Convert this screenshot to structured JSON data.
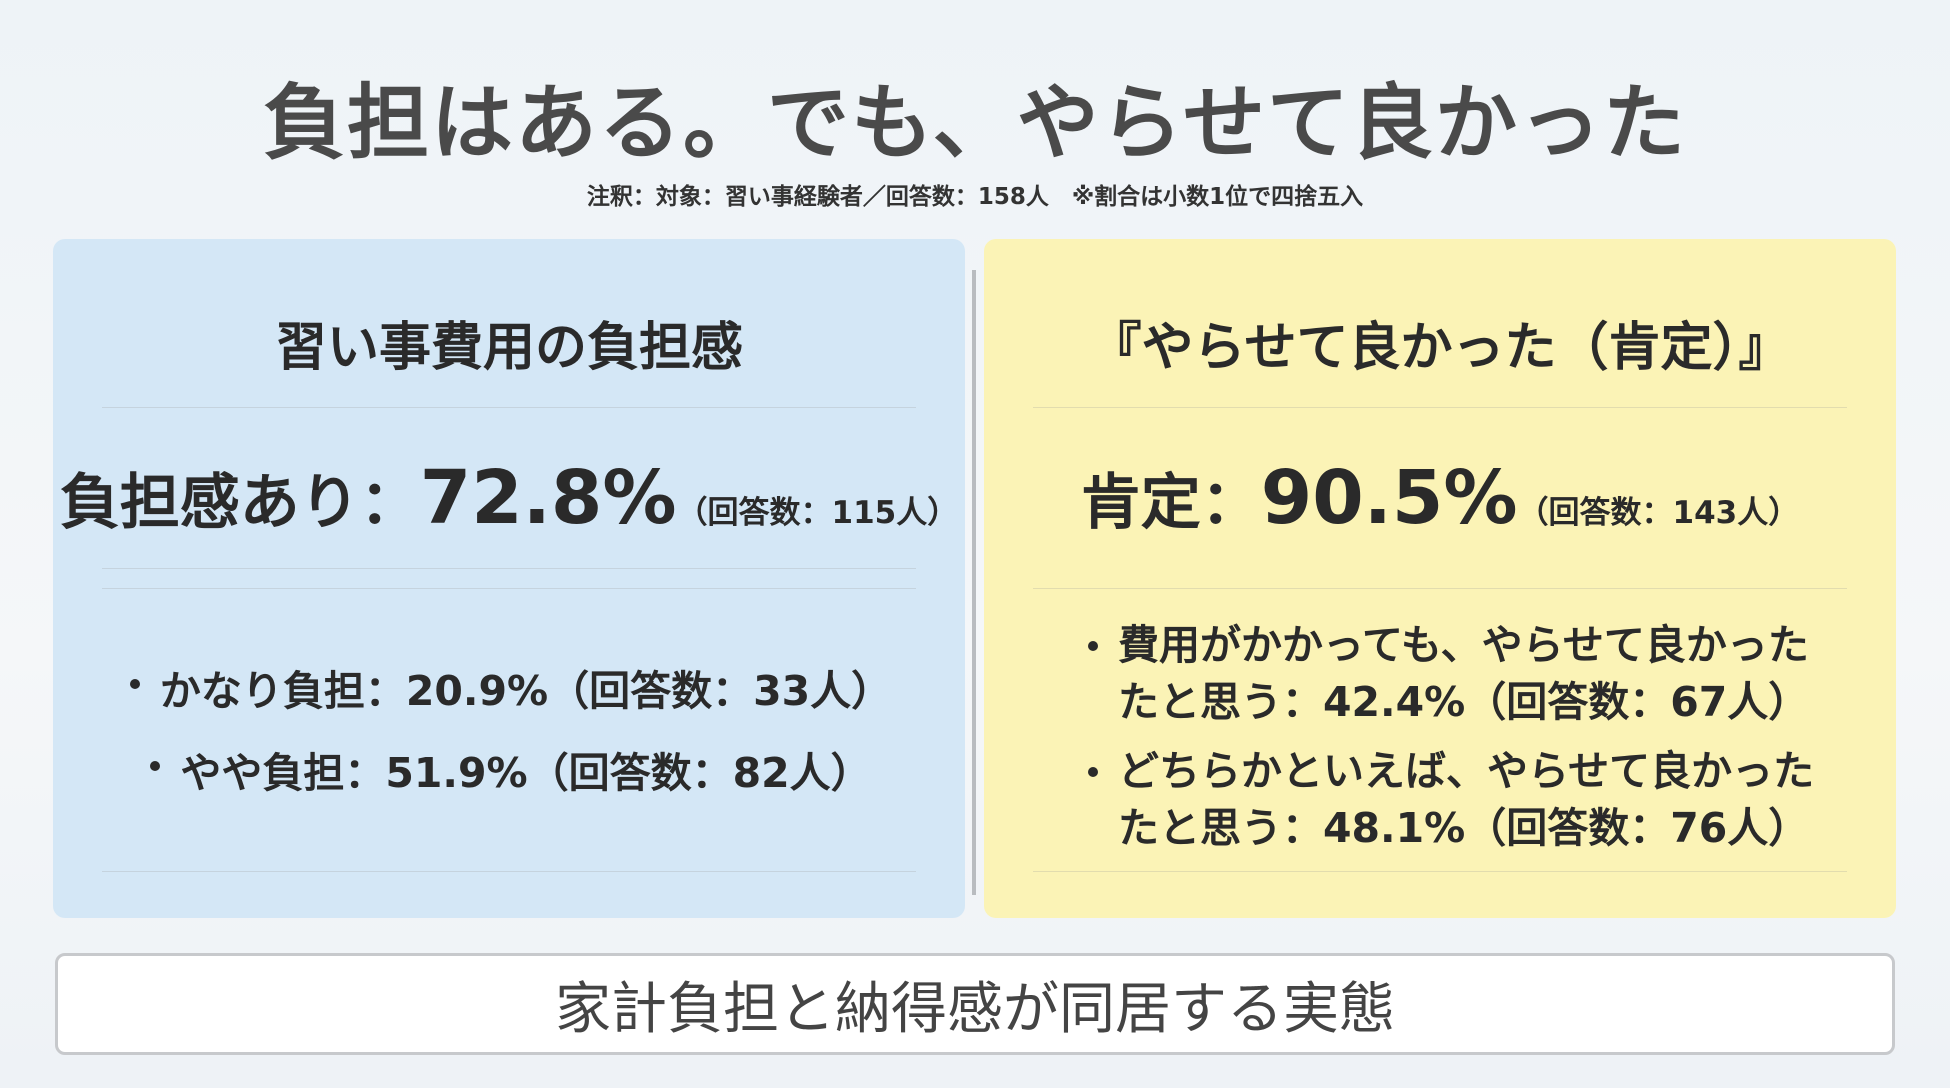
{
  "header": {
    "title": "負担はある。でも、やらせて良かった",
    "note": "注釈：対象：習い事経験者／回答数：158人　※割合は小数1位で四捨五入"
  },
  "panels": [
    {
      "heading": "習い事費用の負担感",
      "main_label": "負担感あり：",
      "main_value": "72.8%",
      "main_count": "（回答数：115人）",
      "items": [
        "かなり負担：20.9%（回答数：33人）",
        "やや負担：51.9%（回答数：82人）"
      ]
    },
    {
      "heading": "『やらせて良かった（肯定）』",
      "main_label": "肯定：",
      "main_value": "90.5%",
      "main_count": "（回答数：143人）",
      "items": [
        "費用がかかっても、やらせて良かったたと思う：42.4%（回答数：67人）",
        "どちらかといえば、やらせて良かったたと思う：48.1%（回答数：76人）"
      ]
    }
  ],
  "footer": {
    "text": "家計負担と納得感が同居する実態"
  }
}
